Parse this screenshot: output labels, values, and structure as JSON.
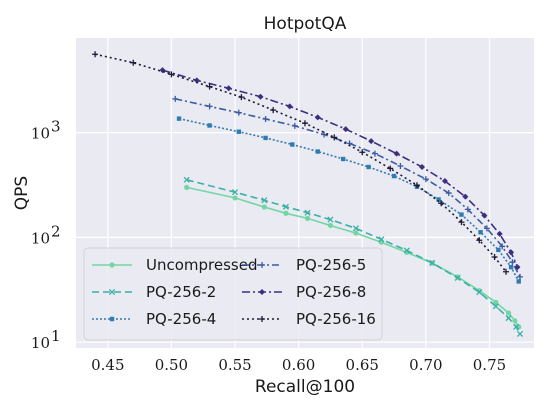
{
  "chart_data": {
    "type": "line",
    "title": "HotpotQA",
    "xlabel": "Recall@100",
    "ylabel": "QPS",
    "xlim": [
      0.425,
      0.785
    ],
    "ylim": [
      8.8,
      8000
    ],
    "yscale": "log",
    "grid": true,
    "legend_position": "lower-left",
    "legend_columns": 2,
    "plot_background": "#eaeaf2",
    "x_ticks": [
      {
        "value": 0.45,
        "label": "0.45"
      },
      {
        "value": 0.5,
        "label": "0.50"
      },
      {
        "value": 0.55,
        "label": "0.55"
      },
      {
        "value": 0.6,
        "label": "0.60"
      },
      {
        "value": 0.65,
        "label": "0.65"
      },
      {
        "value": 0.7,
        "label": "0.70"
      },
      {
        "value": 0.75,
        "label": "0.75"
      }
    ],
    "y_ticks": [
      {
        "value": 10,
        "label": "10",
        "exp": "1"
      },
      {
        "value": 100,
        "label": "10",
        "exp": "2"
      },
      {
        "value": 1000,
        "label": "10",
        "exp": "3"
      }
    ],
    "series": [
      {
        "name": "Uncompressed",
        "color": "#72d6a4",
        "dash": "",
        "marker": "circle",
        "points": [
          [
            0.512,
            300
          ],
          [
            0.55,
            238
          ],
          [
            0.573,
            195
          ],
          [
            0.59,
            170
          ],
          [
            0.607,
            152
          ],
          [
            0.625,
            130
          ],
          [
            0.645,
            110
          ],
          [
            0.665,
            90
          ],
          [
            0.685,
            72
          ],
          [
            0.705,
            57
          ],
          [
            0.725,
            42
          ],
          [
            0.742,
            31
          ],
          [
            0.755,
            24
          ],
          [
            0.765,
            19
          ],
          [
            0.77,
            16
          ],
          [
            0.773,
            14
          ]
        ]
      },
      {
        "name": "PQ-256-2",
        "color": "#3ab0a6",
        "dash": "7,4",
        "marker": "x",
        "points": [
          [
            0.512,
            355
          ],
          [
            0.55,
            270
          ],
          [
            0.573,
            226
          ],
          [
            0.59,
            196
          ],
          [
            0.607,
            172
          ],
          [
            0.625,
            148
          ],
          [
            0.645,
            122
          ],
          [
            0.665,
            96
          ],
          [
            0.685,
            75
          ],
          [
            0.705,
            57
          ],
          [
            0.725,
            41
          ],
          [
            0.742,
            30
          ],
          [
            0.755,
            22
          ],
          [
            0.765,
            17
          ],
          [
            0.771,
            14
          ],
          [
            0.774,
            12
          ]
        ]
      },
      {
        "name": "PQ-256-4",
        "color": "#2f7cb0",
        "dash": "2,2",
        "marker": "square",
        "points": [
          [
            0.506,
            1360
          ],
          [
            0.53,
            1170
          ],
          [
            0.553,
            1020
          ],
          [
            0.574,
            890
          ],
          [
            0.595,
            770
          ],
          [
            0.615,
            660
          ],
          [
            0.635,
            560
          ],
          [
            0.655,
            470
          ],
          [
            0.675,
            385
          ],
          [
            0.693,
            305
          ],
          [
            0.71,
            230
          ],
          [
            0.728,
            165
          ],
          [
            0.743,
            112
          ],
          [
            0.757,
            76
          ],
          [
            0.767,
            52
          ],
          [
            0.773,
            38
          ]
        ]
      },
      {
        "name": "PQ-256-5",
        "color": "#3b5ca0",
        "dash": "7,3,2,3",
        "marker": "plus",
        "points": [
          [
            0.503,
            2100
          ],
          [
            0.53,
            1780
          ],
          [
            0.553,
            1550
          ],
          [
            0.574,
            1350
          ],
          [
            0.597,
            1160
          ],
          [
            0.62,
            960
          ],
          [
            0.64,
            790
          ],
          [
            0.66,
            630
          ],
          [
            0.68,
            480
          ],
          [
            0.7,
            360
          ],
          [
            0.718,
            265
          ],
          [
            0.733,
            185
          ],
          [
            0.748,
            122
          ],
          [
            0.76,
            82
          ],
          [
            0.768,
            58
          ],
          [
            0.774,
            42
          ]
        ]
      },
      {
        "name": "PQ-256-8",
        "color": "#3d2e7e",
        "dash": "8,3,2,3",
        "marker": "diamond",
        "points": [
          [
            0.493,
            3950
          ],
          [
            0.52,
            3150
          ],
          [
            0.545,
            2650
          ],
          [
            0.57,
            2200
          ],
          [
            0.593,
            1780
          ],
          [
            0.615,
            1400
          ],
          [
            0.637,
            1080
          ],
          [
            0.657,
            830
          ],
          [
            0.677,
            630
          ],
          [
            0.697,
            470
          ],
          [
            0.715,
            345
          ],
          [
            0.731,
            245
          ],
          [
            0.746,
            162
          ],
          [
            0.758,
            108
          ],
          [
            0.767,
            72
          ],
          [
            0.772,
            52
          ]
        ]
      },
      {
        "name": "PQ-256-16",
        "color": "#1e1a36",
        "dash": "2,3",
        "marker": "plus",
        "points": [
          [
            0.44,
            5600
          ],
          [
            0.47,
            4650
          ],
          [
            0.5,
            3600
          ],
          [
            0.53,
            2750
          ],
          [
            0.555,
            2180
          ],
          [
            0.58,
            1640
          ],
          [
            0.605,
            1230
          ],
          [
            0.628,
            900
          ],
          [
            0.65,
            650
          ],
          [
            0.672,
            455
          ],
          [
            0.693,
            315
          ],
          [
            0.712,
            212
          ],
          [
            0.728,
            140
          ],
          [
            0.742,
            94
          ],
          [
            0.754,
            65
          ],
          [
            0.763,
            47
          ]
        ]
      }
    ]
  }
}
